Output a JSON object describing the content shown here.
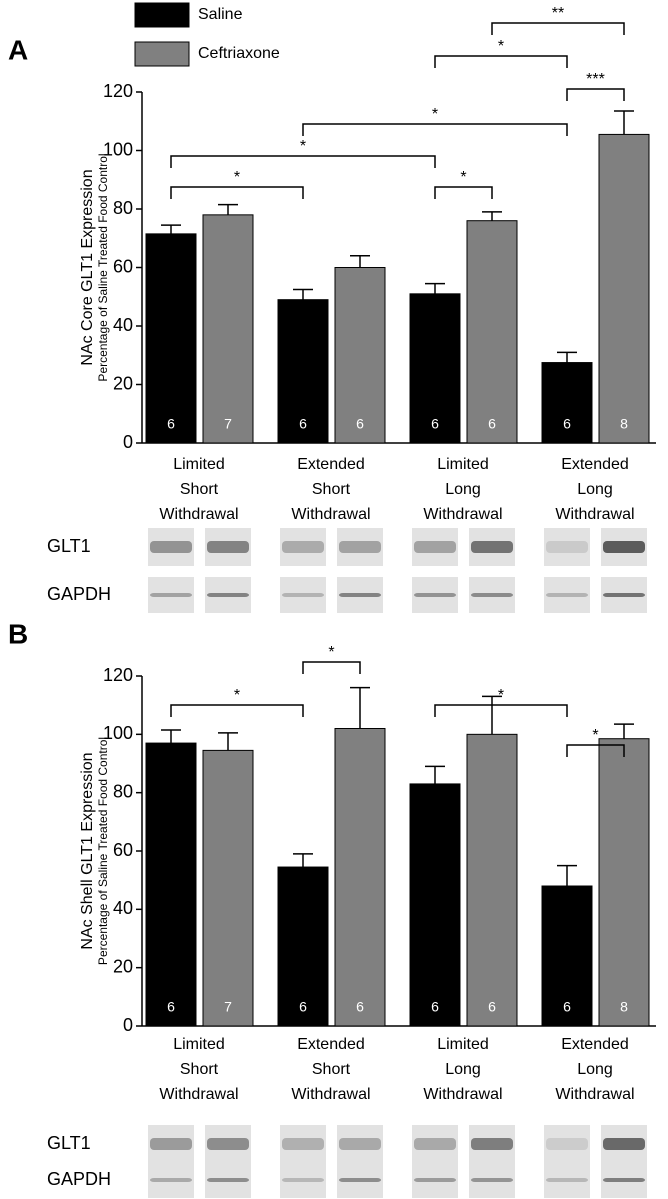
{
  "chart_data": [
    {
      "type": "bar",
      "panel": "A",
      "y_label": "NAc Core GLT1 Expression",
      "y_sublabel": "Percentage of Saline Treated Food Control",
      "categories": [
        [
          "Limited",
          "Short",
          "Withdrawal"
        ],
        [
          "Extended",
          "Short",
          "Withdrawal"
        ],
        [
          "Limited",
          "Long",
          "Withdrawal"
        ],
        [
          "Extended",
          "Long",
          "Withdrawal"
        ]
      ],
      "series": [
        {
          "name": "Saline",
          "color": "#000000",
          "values": [
            71.5,
            49,
            51,
            27.5
          ],
          "errors": [
            3,
            3.5,
            3.5,
            3.5
          ],
          "n": [
            6,
            6,
            6,
            6
          ]
        },
        {
          "name": "Ceftriaxone",
          "color": "#808080",
          "values": [
            78,
            60,
            76,
            105.5
          ],
          "errors": [
            3.5,
            4,
            3,
            8
          ],
          "n": [
            7,
            6,
            6,
            8
          ]
        }
      ],
      "ylim": [
        0,
        120
      ],
      "yticks": [
        0,
        20,
        40,
        60,
        80,
        100,
        120
      ],
      "brackets": [
        {
          "label": "**",
          "between": [
            [
              1,
              2
            ],
            [
              1,
              3
            ]
          ]
        },
        {
          "label": "*",
          "between": [
            [
              0,
              2
            ],
            [
              0,
              3
            ]
          ]
        },
        {
          "label": "***",
          "between": [
            [
              0,
              3
            ],
            [
              1,
              3
            ]
          ]
        },
        {
          "label": "*",
          "between": [
            [
              0,
              1
            ],
            [
              0,
              3
            ]
          ]
        },
        {
          "label": "*",
          "between": [
            [
              0,
              0
            ],
            [
              0,
              2
            ]
          ]
        },
        {
          "label": "*",
          "between": [
            [
              0,
              0
            ],
            [
              0,
              1
            ]
          ]
        },
        {
          "label": "*",
          "between": [
            [
              0,
              2
            ],
            [
              1,
              2
            ]
          ]
        }
      ],
      "blot_rows": [
        "GLT1",
        "GAPDH"
      ]
    },
    {
      "type": "bar",
      "panel": "B",
      "y_label": "NAc Shell GLT1 Expression",
      "y_sublabel": "Percentage of Saline Treated Food Control",
      "categories": [
        [
          "Limited",
          "Short",
          "Withdrawal"
        ],
        [
          "Extended",
          "Short",
          "Withdrawal"
        ],
        [
          "Limited",
          "Long",
          "Withdrawal"
        ],
        [
          "Extended",
          "Long",
          "Withdrawal"
        ]
      ],
      "series": [
        {
          "color": "#000000",
          "values": [
            97,
            54.5,
            83,
            48
          ],
          "errors": [
            4.5,
            4.5,
            6,
            7
          ],
          "n": [
            6,
            6,
            6,
            6
          ]
        },
        {
          "color": "#808080",
          "values": [
            94.5,
            102,
            100,
            98.5
          ],
          "errors": [
            6,
            14,
            13,
            5
          ],
          "n": [
            7,
            6,
            6,
            8
          ]
        }
      ],
      "ylim": [
        0,
        120
      ],
      "yticks": [
        0,
        20,
        40,
        60,
        80,
        100,
        120
      ],
      "brackets": [
        {
          "label": "*",
          "between": [
            [
              0,
              0
            ],
            [
              0,
              1
            ]
          ]
        },
        {
          "label": "*",
          "between": [
            [
              0,
              1
            ],
            [
              1,
              1
            ]
          ]
        },
        {
          "label": "*",
          "between": [
            [
              0,
              2
            ],
            [
              0,
              3
            ]
          ]
        },
        {
          "label": "*",
          "between": [
            [
              0,
              3
            ],
            [
              1,
              3
            ]
          ]
        }
      ],
      "blot_rows": [
        "GLT1",
        "GAPDH"
      ]
    }
  ]
}
